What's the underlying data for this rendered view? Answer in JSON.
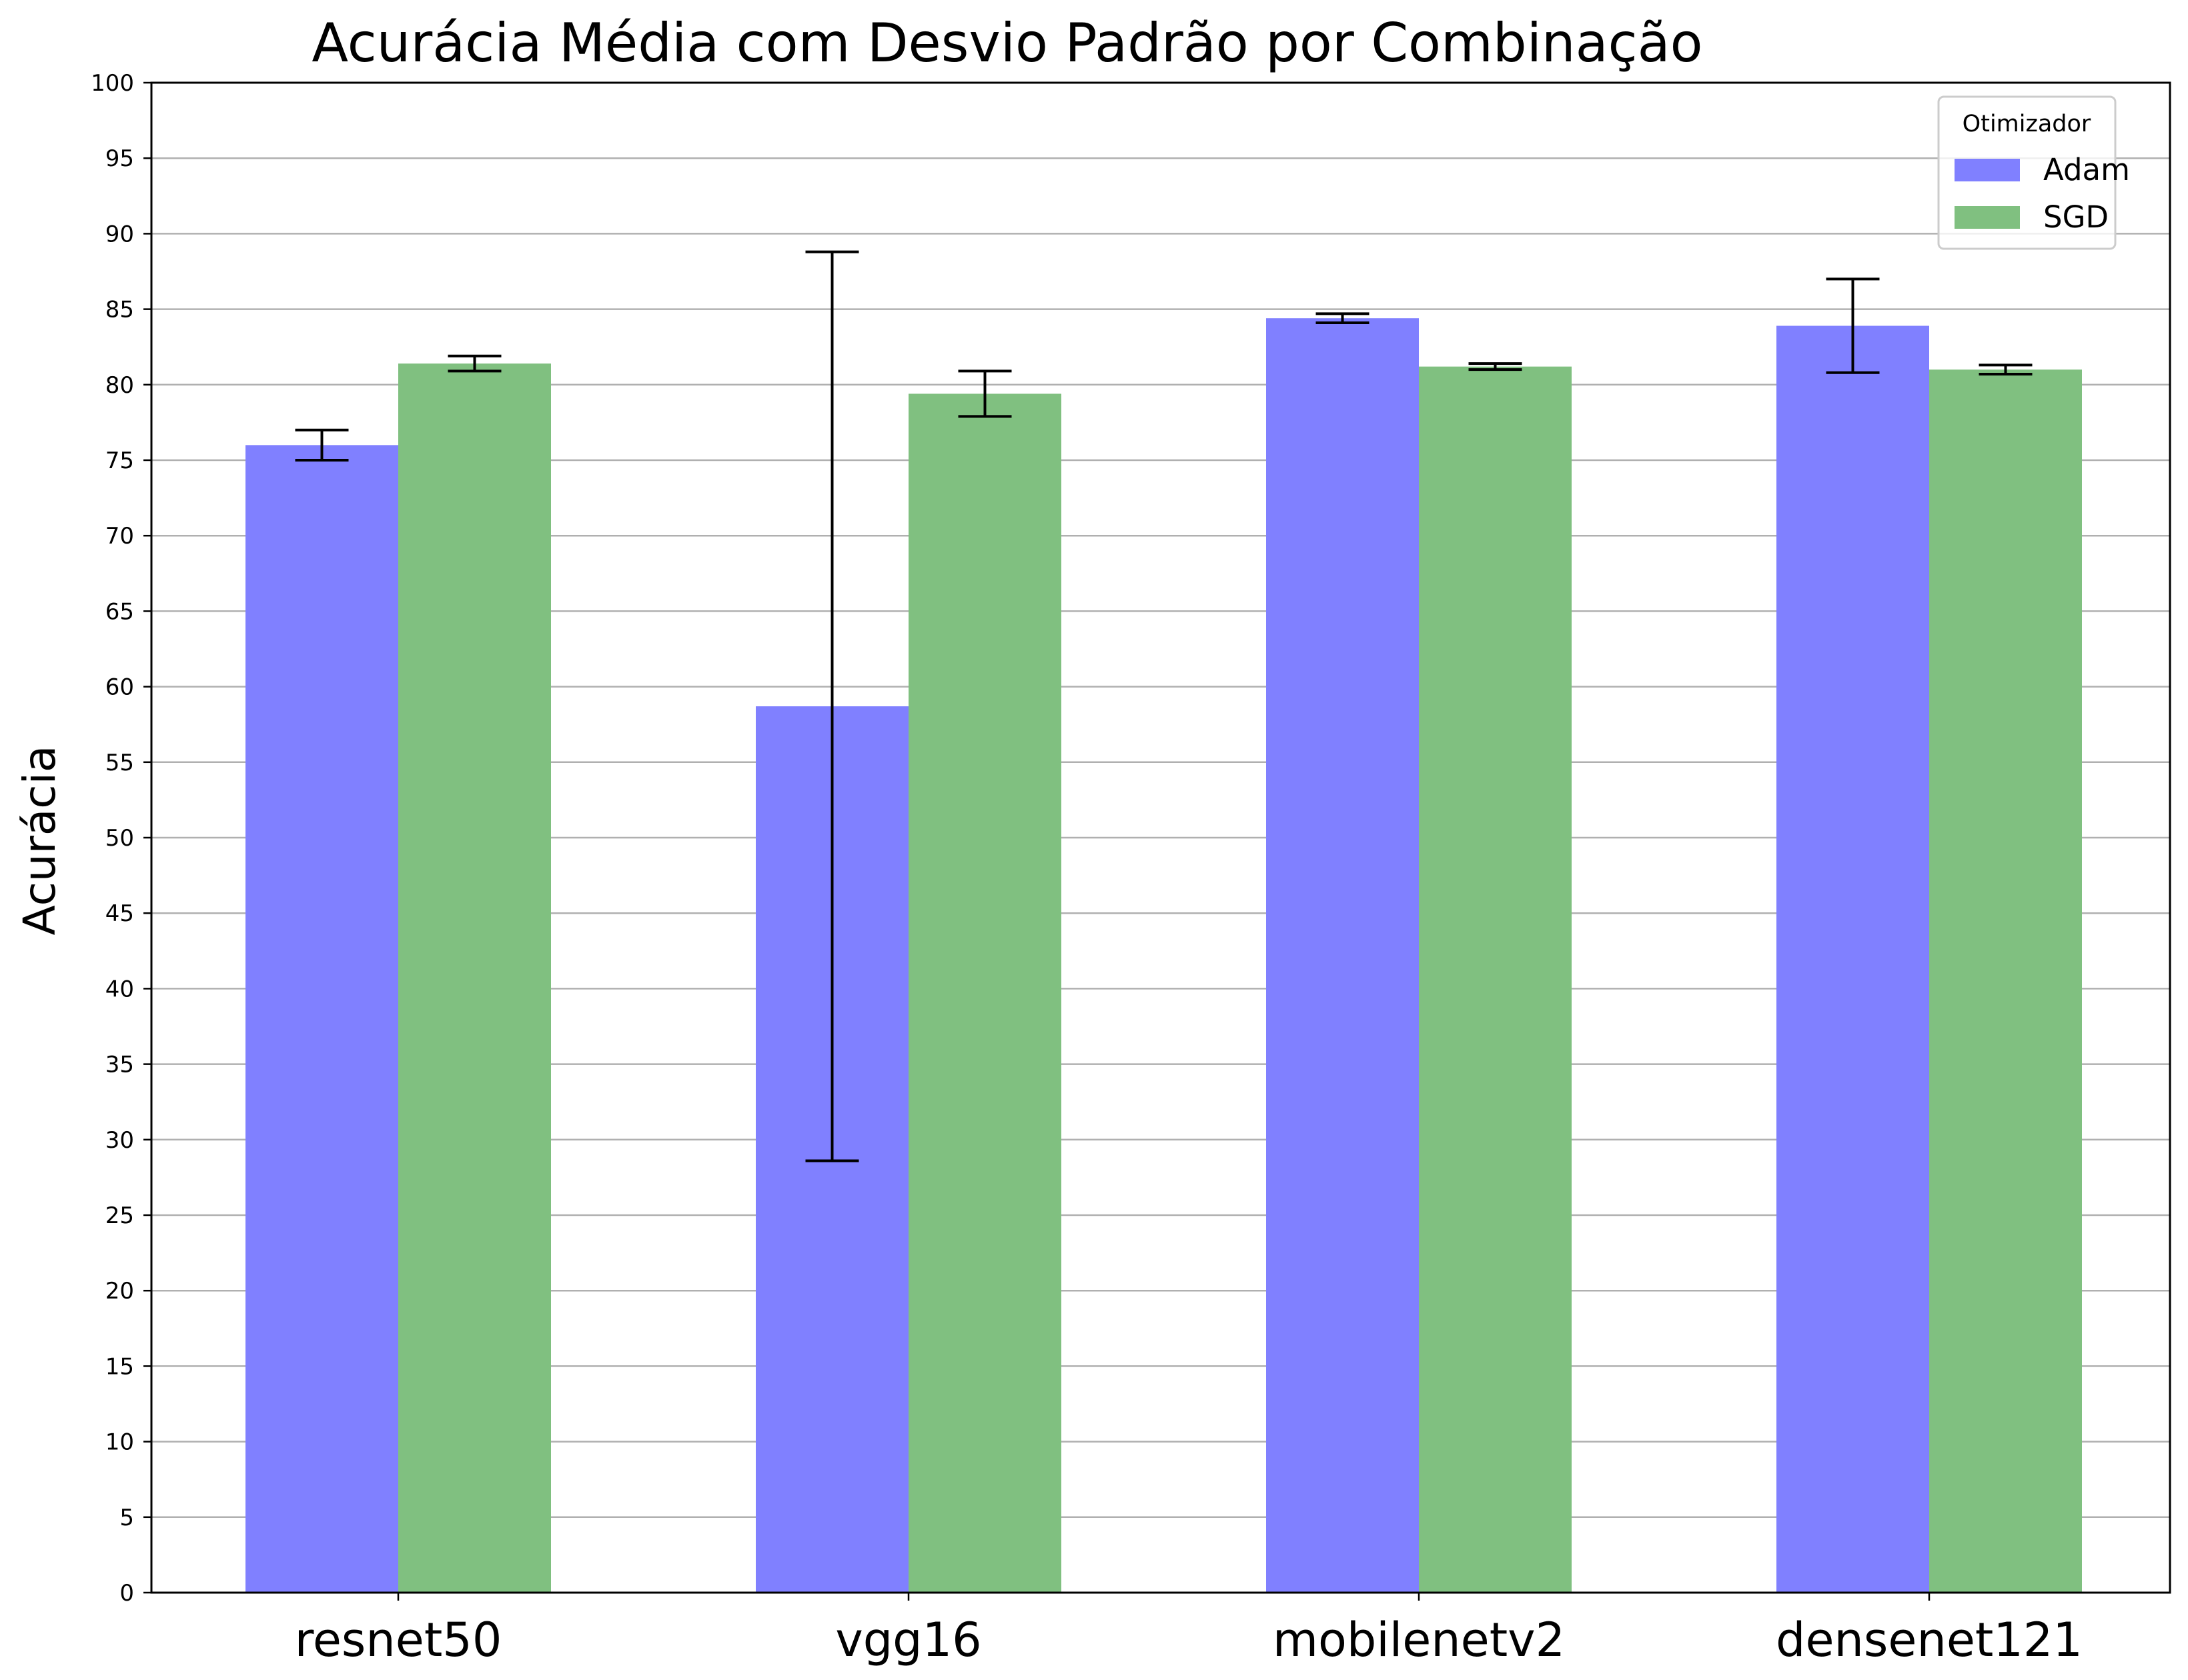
{
  "chart_data": {
    "type": "bar",
    "title": "Acurácia Média com Desvio Padrão por Combinação",
    "xlabel": "",
    "ylabel": "Acurácia",
    "categories": [
      "resnet50",
      "vgg16",
      "mobilenetv2",
      "densenet121"
    ],
    "series": [
      {
        "name": "Adam",
        "color": "#8080ff",
        "values": [
          76.0,
          58.7,
          84.4,
          83.9
        ],
        "errors": [
          1.0,
          30.1,
          0.3,
          3.1
        ]
      },
      {
        "name": "SGD",
        "color": "#80c080",
        "values": [
          81.4,
          79.4,
          81.2,
          81.0
        ],
        "errors": [
          0.5,
          1.5,
          0.2,
          0.3
        ]
      }
    ],
    "ylim": [
      0,
      100
    ],
    "yticks": [
      0,
      5,
      10,
      15,
      20,
      25,
      30,
      35,
      40,
      45,
      50,
      55,
      60,
      65,
      70,
      75,
      80,
      85,
      90,
      95,
      100
    ],
    "grid": "y",
    "legend": {
      "title": "Otimizador",
      "placement": "top-right"
    }
  }
}
